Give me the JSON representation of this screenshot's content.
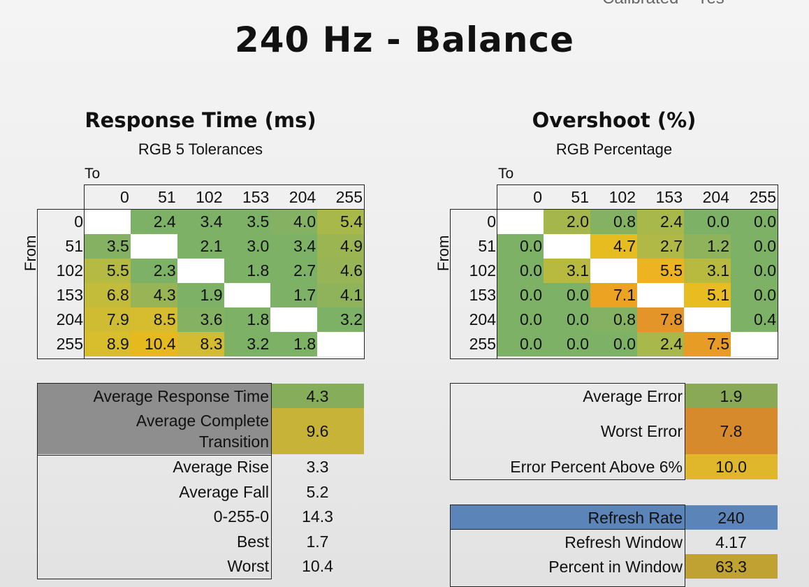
{
  "page": {
    "title": "240 Hz - Balance",
    "top_cut_text": "Calibrated    Yes"
  },
  "chart_data": [
    {
      "type": "heatmap",
      "title": "Response Time (ms)",
      "subtitle": "RGB 5 Tolerances",
      "xlabel": "To",
      "ylabel": "From",
      "columns": [
        "0",
        "51",
        "102",
        "153",
        "204",
        "255"
      ],
      "rows": [
        "0",
        "51",
        "102",
        "153",
        "204",
        "255"
      ],
      "values": [
        [
          null,
          2.4,
          3.4,
          3.5,
          4.0,
          5.4
        ],
        [
          3.5,
          null,
          2.1,
          3.0,
          3.4,
          4.9
        ],
        [
          5.5,
          2.3,
          null,
          1.8,
          2.7,
          4.6
        ],
        [
          6.8,
          4.3,
          1.9,
          null,
          1.7,
          4.1
        ],
        [
          7.9,
          8.5,
          3.6,
          1.8,
          null,
          3.2
        ],
        [
          8.9,
          10.4,
          8.3,
          3.2,
          1.8,
          null
        ]
      ],
      "colors": [
        [
          null,
          "#7cb166",
          "#7cb166",
          "#7cb166",
          "#85b262",
          "#a9b84a"
        ],
        [
          "#85b262",
          null,
          "#7cb166",
          "#7cb166",
          "#7cb166",
          "#9bb553"
        ],
        [
          "#b4ba42",
          "#7cb166",
          null,
          "#7cb166",
          "#7cb166",
          "#97b456"
        ],
        [
          "#c3bb3a",
          "#98b455",
          "#7cb166",
          null,
          "#7cb166",
          "#8fb35b"
        ],
        [
          "#cfbc33",
          "#d6bc2f",
          "#85b262",
          "#7cb166",
          null,
          "#7cb166"
        ],
        [
          "#d8bd2d",
          "#e6b91e",
          "#d3bc31",
          "#7cb166",
          "#7cb166",
          null
        ]
      ]
    },
    {
      "type": "heatmap",
      "title": "Overshoot (%)",
      "subtitle": "RGB Percentage",
      "xlabel": "To",
      "ylabel": "From",
      "columns": [
        "0",
        "51",
        "102",
        "153",
        "204",
        "255"
      ],
      "rows": [
        "0",
        "51",
        "102",
        "153",
        "204",
        "255"
      ],
      "values": [
        [
          null,
          2.0,
          0.8,
          2.4,
          0.0,
          0.0
        ],
        [
          0.0,
          null,
          4.7,
          2.7,
          1.2,
          0.0
        ],
        [
          0.0,
          3.1,
          null,
          5.5,
          3.1,
          0.0
        ],
        [
          0.0,
          0.0,
          7.1,
          null,
          5.1,
          0.0
        ],
        [
          0.0,
          0.0,
          0.8,
          7.8,
          null,
          0.4
        ],
        [
          0.0,
          0.0,
          0.0,
          2.4,
          7.5,
          null
        ]
      ],
      "colors": [
        [
          null,
          "#a5b74c",
          "#85b262",
          "#a9b84a",
          "#7cb166",
          "#7cb166"
        ],
        [
          "#7cb166",
          null,
          "#e6bc20",
          "#b0b945",
          "#8fb35b",
          "#7cb166"
        ],
        [
          "#7cb166",
          "#b8ba40",
          null,
          "#edb320",
          "#b8ba40",
          "#7cb166"
        ],
        [
          "#7cb166",
          "#7cb166",
          "#eba321",
          null,
          "#e8bd22",
          "#7cb166"
        ],
        [
          "#7cb166",
          "#7cb166",
          "#85b262",
          "#e3952a",
          null,
          "#7cb166"
        ],
        [
          "#7cb166",
          "#7cb166",
          "#7cb166",
          "#a9b84a",
          "#e79c26",
          null
        ]
      ]
    }
  ],
  "response_stats": {
    "avg_response_label": "Average Response Time",
    "avg_response_value": "4.3",
    "avg_complete_label_1": "Average Complete",
    "avg_complete_label_2": "Transition",
    "avg_complete_value": "9.6",
    "avg_rise_label": "Average Rise",
    "avg_rise_value": "3.3",
    "avg_fall_label": "Average Fall",
    "avg_fall_value": "5.2",
    "cycle_label": "0-255-0",
    "cycle_value": "14.3",
    "best_label": "Best",
    "best_value": "1.7",
    "worst_label": "Worst",
    "worst_value": "10.4",
    "colors": {
      "header_bg": "#8e8e8e",
      "avg_response_bg": "#86ad59",
      "avg_complete_bg": "#c7b338"
    }
  },
  "overshoot_stats": {
    "avg_error_label": "Average Error",
    "avg_error_value": "1.9",
    "worst_error_label": "Worst Error",
    "worst_error_value": "7.8",
    "error_pct_label": "Error Percent Above 6%",
    "error_pct_value": "10.0",
    "colors": {
      "avg_error_bg": "#8aa956",
      "worst_error_bg": "#d68a2c",
      "error_pct_bg": "#e0b72a"
    }
  },
  "refresh_stats": {
    "refresh_rate_label": "Refresh Rate",
    "refresh_rate_value": "240",
    "refresh_window_label": "Refresh Window",
    "refresh_window_value": "4.17",
    "percent_window_label": "Percent in Window",
    "percent_window_value": "63.3",
    "colors": {
      "refresh_rate_bg": "#5b84b8",
      "percent_window_bg": "#bfa231"
    }
  }
}
